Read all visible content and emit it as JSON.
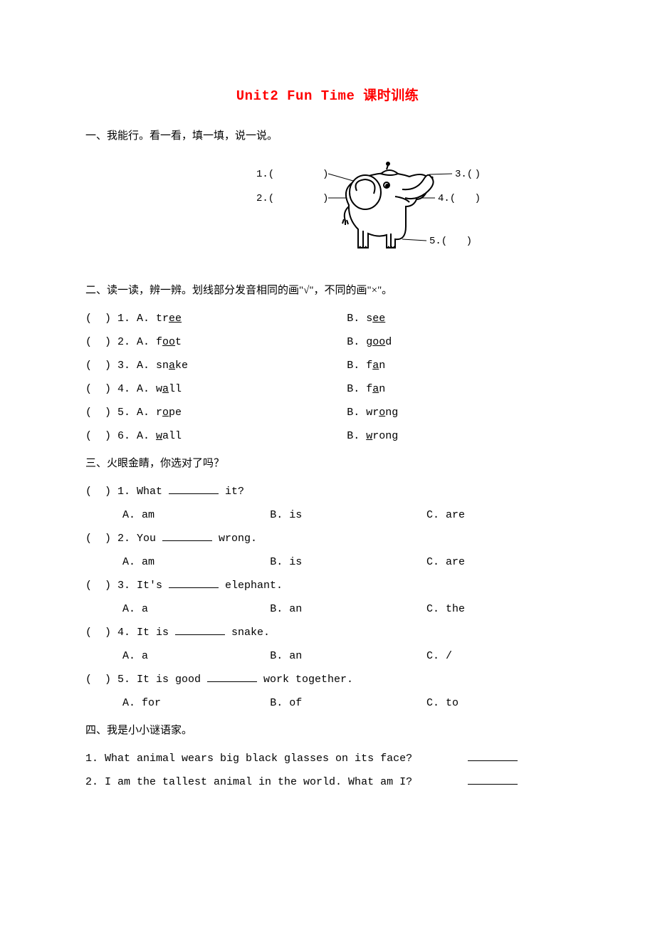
{
  "title": "Unit2 Fun Time 课时训练",
  "section1": {
    "heading": "一、我能行。看一看，填一填，说一说。",
    "labels": [
      "1.(",
      "2.(",
      "3.(",
      "4.(",
      "5.("
    ]
  },
  "section2": {
    "heading": "二、读一读，辨一辨。划线部分发音相同的画\"√\"，不同的画\"×\"。",
    "items": [
      {
        "n": "1",
        "a_pre": "tr",
        "a_u": "ee",
        "a_post": "",
        "b_pre": "s",
        "b_u": "ee",
        "b_post": ""
      },
      {
        "n": "2",
        "a_pre": "f",
        "a_u": "oo",
        "a_post": "t",
        "b_pre": "g",
        "b_u": "oo",
        "b_post": "d"
      },
      {
        "n": "3",
        "a_pre": "sn",
        "a_u": "a",
        "a_post": "ke",
        "b_pre": "f",
        "b_u": "a",
        "b_post": "n"
      },
      {
        "n": "4",
        "a_pre": "w",
        "a_u": "a",
        "a_post": "ll",
        "b_pre": "f",
        "b_u": "a",
        "b_post": "n"
      },
      {
        "n": "5",
        "a_pre": "r",
        "a_u": "o",
        "a_post": "pe",
        "b_pre": "wr",
        "b_u": "o",
        "b_post": "ng"
      },
      {
        "n": "6",
        "a_pre": "",
        "a_u": "w",
        "a_post": "all",
        "b_pre": "",
        "b_u": "w",
        "b_post": "rong"
      }
    ]
  },
  "section3": {
    "heading": "三、火眼金睛，你选对了吗？",
    "items": [
      {
        "n": "1",
        "q_pre": "What ",
        "q_post": " it?",
        "a": "am",
        "b": "is",
        "c": "are"
      },
      {
        "n": "2",
        "q_pre": "You ",
        "q_post": " wrong.",
        "a": "am",
        "b": "is",
        "c": "are"
      },
      {
        "n": "3",
        "q_pre": "It's ",
        "q_post": " elephant.",
        "a": "a",
        "b": "an",
        "c": "the"
      },
      {
        "n": "4",
        "q_pre": "It is ",
        "q_post": " snake.",
        "a": "a",
        "b": "an",
        "c": "/"
      },
      {
        "n": "5",
        "q_pre": "It is good ",
        "q_post": " work together.",
        "a": "for",
        "b": "of",
        "c": "to"
      }
    ]
  },
  "section4": {
    "heading": "四、我是小小谜语家。",
    "items": [
      {
        "n": "1",
        "text": "What animal wears big black glasses on its face?"
      },
      {
        "n": "2",
        "text": "I am the tallest animal in the world. What am I?"
      }
    ]
  },
  "style": {
    "title_color": "#ff0000",
    "text_color": "#000000",
    "bg_color": "#ffffff",
    "title_fontsize": 19,
    "body_fontsize": 15,
    "line_height": 2.2
  }
}
